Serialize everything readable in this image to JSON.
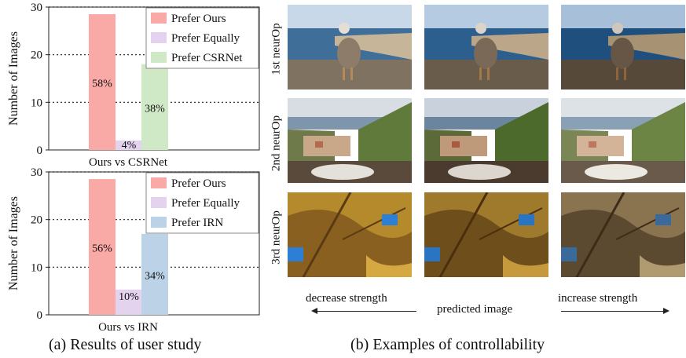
{
  "chart_data": [
    {
      "type": "bar",
      "categories": [
        "Ours vs CSRNet"
      ],
      "series": [
        {
          "name": "Prefer Ours",
          "values": [
            28.5
          ],
          "label": "58%",
          "color": "#f9a9a6"
        },
        {
          "name": "Prefer Equally",
          "values": [
            2
          ],
          "label": "4%",
          "color": "#e3d3ee"
        },
        {
          "name": "Prefer CSRNet",
          "values": [
            18
          ],
          "label": "38%",
          "color": "#cfe8c6"
        }
      ],
      "xlabel": "Ours vs CSRNet",
      "ylabel": "Number of Images",
      "ylim": [
        0,
        30
      ],
      "yticks": [
        "0",
        "10",
        "20",
        "30"
      ],
      "grid": true,
      "legend": "top-right"
    },
    {
      "type": "bar",
      "categories": [
        "Ours vs IRN"
      ],
      "series": [
        {
          "name": "Prefer Ours",
          "values": [
            28.5
          ],
          "label": "56%",
          "color": "#f9a9a6"
        },
        {
          "name": "Prefer Equally",
          "values": [
            5.3
          ],
          "label": "10%",
          "color": "#e3d3ee"
        },
        {
          "name": "Prefer IRN",
          "values": [
            17
          ],
          "label": "34%",
          "color": "#bcd3e7"
        }
      ],
      "xlabel": "Ours vs IRN",
      "ylabel": "Number of Images",
      "ylim": [
        0,
        30
      ],
      "yticks": [
        "0",
        "10",
        "20",
        "30"
      ],
      "grid": true,
      "legend": "top-right"
    }
  ],
  "examples": {
    "rows": [
      "1st neurOp",
      "2nd neurOp",
      "3rd neurOp"
    ],
    "decrease_label": "decrease strength",
    "center_label": "predicted image",
    "increase_label": "increase strength"
  },
  "captions": {
    "left": "(a) Results of user study",
    "right": "(b) Examples of controllability"
  }
}
